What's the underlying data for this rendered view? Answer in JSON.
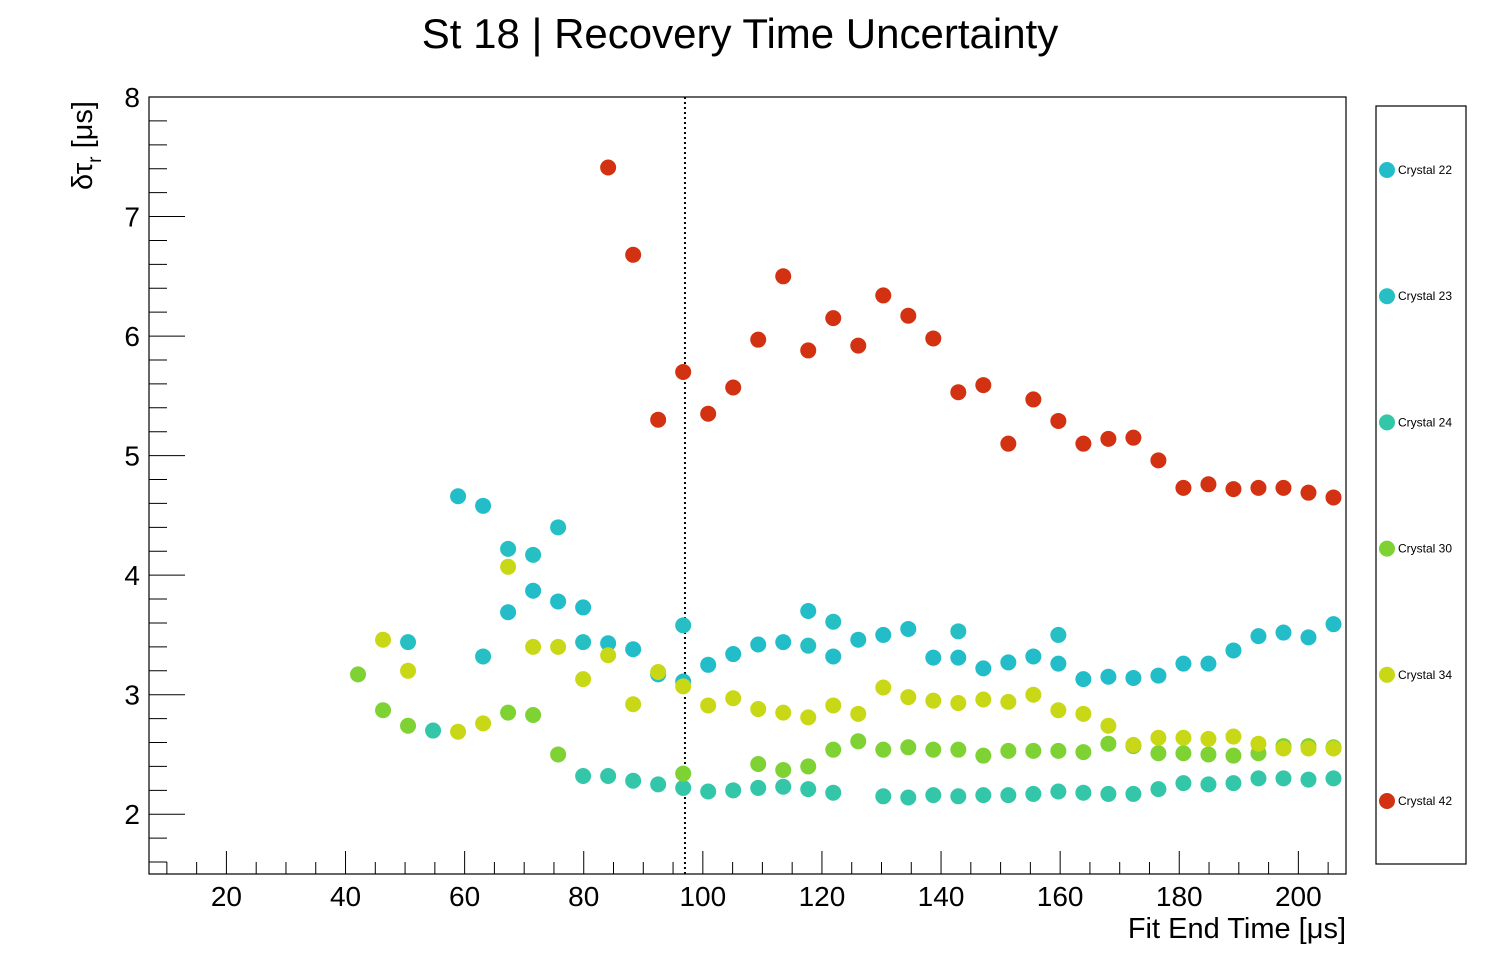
{
  "chart_data": {
    "type": "scatter",
    "title": "St 18 | Recovery Time Uncertainty",
    "xlabel": "Fit End Time [μs]",
    "ylabel_main": "δτ",
    "ylabel_sub": "r",
    "ylabel_unit": " [μs]",
    "xlim": [
      7,
      208
    ],
    "ylim": [
      1.5,
      8
    ],
    "x_ticks": [
      20,
      40,
      60,
      80,
      100,
      120,
      140,
      160,
      180,
      200
    ],
    "y_ticks": [
      2,
      3,
      4,
      5,
      6,
      7,
      8
    ],
    "vertical_line": {
      "x": 97,
      "style": "dotted"
    },
    "legend_placement": "right",
    "series": [
      {
        "name": "Crystal 22",
        "color": "#22bdc8",
        "x": [
          58.9,
          63.1,
          67.3,
          71.5,
          75.7,
          79.9,
          84.1,
          88.3,
          92.5,
          96.7,
          100.9,
          105.1,
          109.3,
          113.5,
          117.7,
          121.9,
          126.1,
          130.3,
          134.5,
          138.7,
          142.9,
          147.1,
          151.3,
          155.5,
          159.7,
          163.9,
          168.1,
          172.3,
          176.5,
          180.7,
          184.9,
          189.1,
          193.3,
          197.5,
          201.7,
          205.9
        ],
        "y": [
          4.66,
          4.58,
          3.69,
          3.87,
          3.78,
          3.73,
          3.43,
          3.38,
          3.17,
          3.11,
          3.25,
          3.34,
          3.42,
          3.44,
          3.7,
          3.32,
          3.46,
          3.5,
          3.55,
          3.31,
          3.31,
          3.22,
          3.27,
          3.32,
          3.26,
          3.13,
          3.15,
          3.14,
          3.16,
          3.26,
          3.26,
          3.37,
          3.49,
          3.52,
          3.48,
          3.59
        ]
      },
      {
        "name": "Crystal 23",
        "color": "#26c0c4",
        "x": [
          50.5,
          63.1,
          67.3,
          71.5,
          75.7,
          79.9,
          96.7,
          117.7,
          121.9,
          142.9,
          159.7
        ],
        "y": [
          3.44,
          3.32,
          4.22,
          4.17,
          4.4,
          3.44,
          3.58,
          3.41,
          3.61,
          3.53,
          3.5
        ]
      },
      {
        "name": "Crystal 24",
        "color": "#33c6a8",
        "x": [
          54.7,
          79.9,
          84.1,
          88.3,
          92.5,
          96.7,
          100.9,
          105.1,
          109.3,
          113.5,
          117.7,
          121.9,
          130.3,
          134.5,
          138.7,
          142.9,
          147.1,
          151.3,
          155.5,
          159.7,
          163.9,
          168.1,
          172.3,
          176.5,
          180.7,
          184.9,
          189.1,
          193.3,
          197.5,
          201.7,
          205.9
        ],
        "y": [
          2.7,
          2.32,
          2.32,
          2.28,
          2.25,
          2.22,
          2.19,
          2.2,
          2.22,
          2.23,
          2.21,
          2.18,
          2.15,
          2.14,
          2.16,
          2.15,
          2.16,
          2.16,
          2.17,
          2.19,
          2.18,
          2.17,
          2.17,
          2.21,
          2.26,
          2.25,
          2.26,
          2.3,
          2.3,
          2.29,
          2.3
        ]
      },
      {
        "name": "Crystal 30",
        "color": "#7ed234",
        "x": [
          42.1,
          46.3,
          50.5,
          67.3,
          71.5,
          75.7,
          96.7,
          109.3,
          113.5,
          117.7,
          121.9,
          126.1,
          130.3,
          134.5,
          138.7,
          142.9,
          147.1,
          151.3,
          155.5,
          159.7,
          163.9,
          168.1,
          172.3,
          176.5,
          180.7,
          184.9,
          189.1,
          193.3,
          197.5,
          201.7,
          205.9
        ],
        "y": [
          3.17,
          2.87,
          2.74,
          2.85,
          2.83,
          2.5,
          2.34,
          2.42,
          2.37,
          2.4,
          2.54,
          2.61,
          2.54,
          2.56,
          2.54,
          2.54,
          2.49,
          2.53,
          2.53,
          2.53,
          2.52,
          2.59,
          2.57,
          2.51,
          2.51,
          2.5,
          2.49,
          2.51,
          2.57,
          2.57,
          2.56
        ]
      },
      {
        "name": "Crystal 34",
        "color": "#c9d816",
        "x": [
          46.3,
          50.5,
          58.9,
          63.1,
          67.3,
          71.5,
          75.7,
          79.9,
          84.1,
          88.3,
          92.5,
          96.7,
          100.9,
          105.1,
          109.3,
          113.5,
          117.7,
          121.9,
          126.1,
          130.3,
          134.5,
          138.7,
          142.9,
          147.1,
          151.3,
          155.5,
          159.7,
          163.9,
          168.1,
          172.3,
          176.5,
          180.7,
          184.9,
          189.1,
          193.3,
          197.5,
          201.7,
          205.9
        ],
        "y": [
          3.46,
          3.2,
          2.69,
          2.76,
          4.07,
          3.4,
          3.4,
          3.13,
          3.33,
          2.92,
          3.19,
          3.07,
          2.91,
          2.97,
          2.88,
          2.85,
          2.81,
          2.91,
          2.84,
          3.06,
          2.98,
          2.95,
          2.93,
          2.96,
          2.94,
          3.0,
          2.87,
          2.84,
          2.74,
          2.58,
          2.64,
          2.64,
          2.63,
          2.65,
          2.59,
          2.55,
          2.55,
          2.55
        ]
      },
      {
        "name": "Crystal 42",
        "color": "#d23212",
        "x": [
          84.1,
          88.3,
          92.5,
          96.7,
          100.9,
          105.1,
          109.3,
          113.5,
          117.7,
          121.9,
          126.1,
          130.3,
          134.5,
          138.7,
          142.9,
          147.1,
          151.3,
          155.5,
          159.7,
          163.9,
          168.1,
          172.3,
          176.5,
          180.7,
          184.9,
          189.1,
          193.3,
          197.5,
          201.7,
          205.9
        ],
        "y": [
          7.41,
          6.68,
          5.3,
          5.7,
          5.35,
          5.57,
          5.97,
          6.5,
          5.88,
          6.15,
          5.92,
          6.34,
          6.17,
          5.98,
          5.53,
          5.59,
          5.1,
          5.47,
          5.29,
          5.1,
          5.14,
          5.15,
          4.96,
          4.73,
          4.76,
          4.72,
          4.73,
          4.73,
          4.69,
          4.65
        ]
      }
    ]
  }
}
